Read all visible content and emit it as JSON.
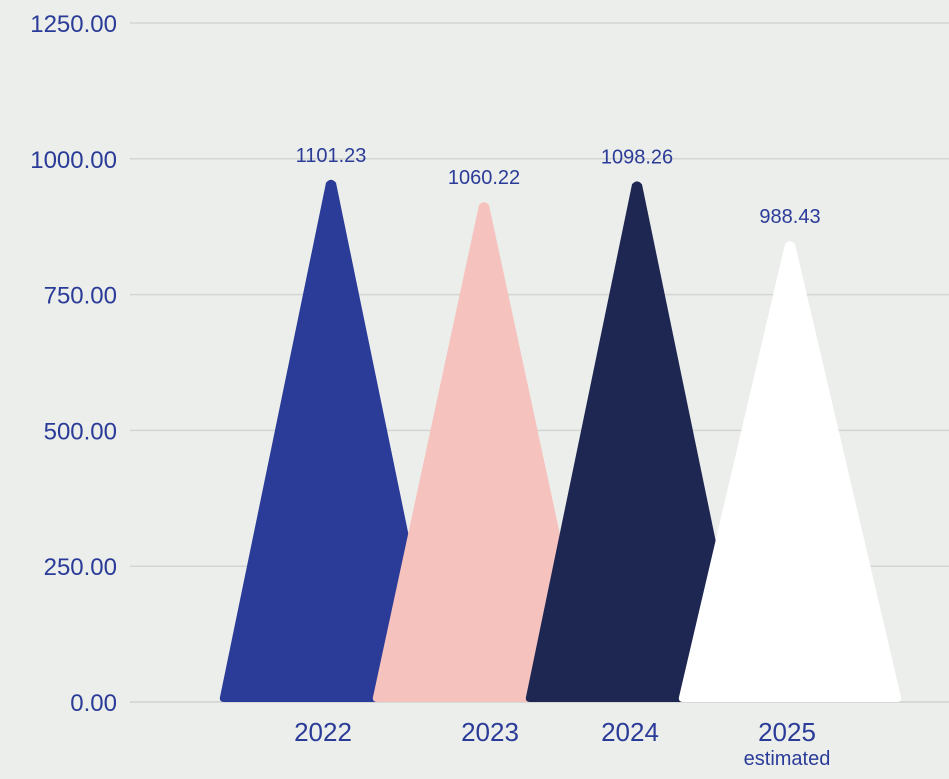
{
  "chart_data": {
    "type": "bar",
    "shape": "triangle",
    "categories": [
      "2022",
      "2023",
      "2024",
      "2025"
    ],
    "category_notes": [
      "",
      "",
      "",
      "estimated"
    ],
    "values": [
      1101.23,
      1060.22,
      1098.26,
      988.43
    ],
    "value_labels": [
      "1101.23",
      "1060.22",
      "1098.26",
      "988.43"
    ],
    "colors": [
      "#2a3b98",
      "#f5c2bd",
      "#1e2652",
      "#ffffff"
    ],
    "y_ticks": [
      0,
      250,
      500,
      750,
      1000,
      1250
    ],
    "y_tick_labels": [
      "0.00",
      "250.00",
      "500.00",
      "750.00",
      "1000.00",
      "1250.00"
    ],
    "ylim": [
      0,
      1250
    ],
    "grid": true,
    "legend": "none",
    "title": "",
    "xlabel": "",
    "ylabel": ""
  },
  "style": {
    "background": "#eceeeb",
    "text_color": "#2a3b98",
    "grid_color": "#d4d6d3"
  }
}
